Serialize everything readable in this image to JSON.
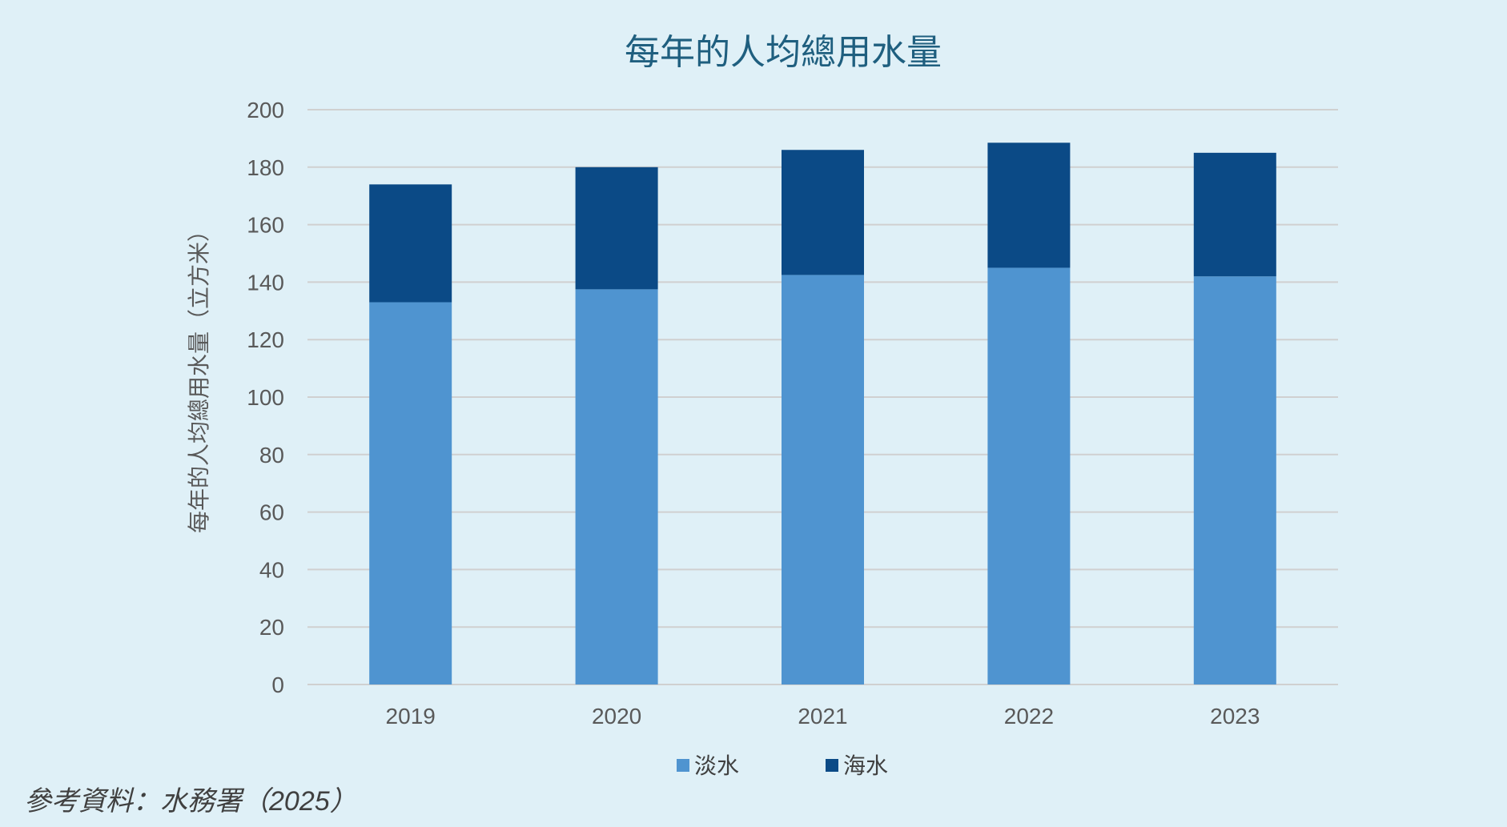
{
  "chart_data": {
    "type": "bar",
    "stacked": true,
    "title": "每年的人均總用水量",
    "ylabel": "每年的人均總用水量（立方米）",
    "xlabel": "",
    "categories": [
      "2019",
      "2020",
      "2021",
      "2022",
      "2023"
    ],
    "series": [
      {
        "name": "淡水",
        "color": "#4f94d0",
        "values": [
          133,
          137.5,
          142.5,
          145,
          142
        ]
      },
      {
        "name": "海水",
        "color": "#0b4a86",
        "values": [
          41,
          42.5,
          43.5,
          43.5,
          43
        ]
      }
    ],
    "ylim": [
      0,
      200
    ],
    "yticks": [
      0,
      20,
      40,
      60,
      80,
      100,
      120,
      140,
      160,
      180,
      200
    ],
    "grid": true,
    "legend_position": "bottom"
  },
  "source_note": "參考資料：水務署（2025）"
}
